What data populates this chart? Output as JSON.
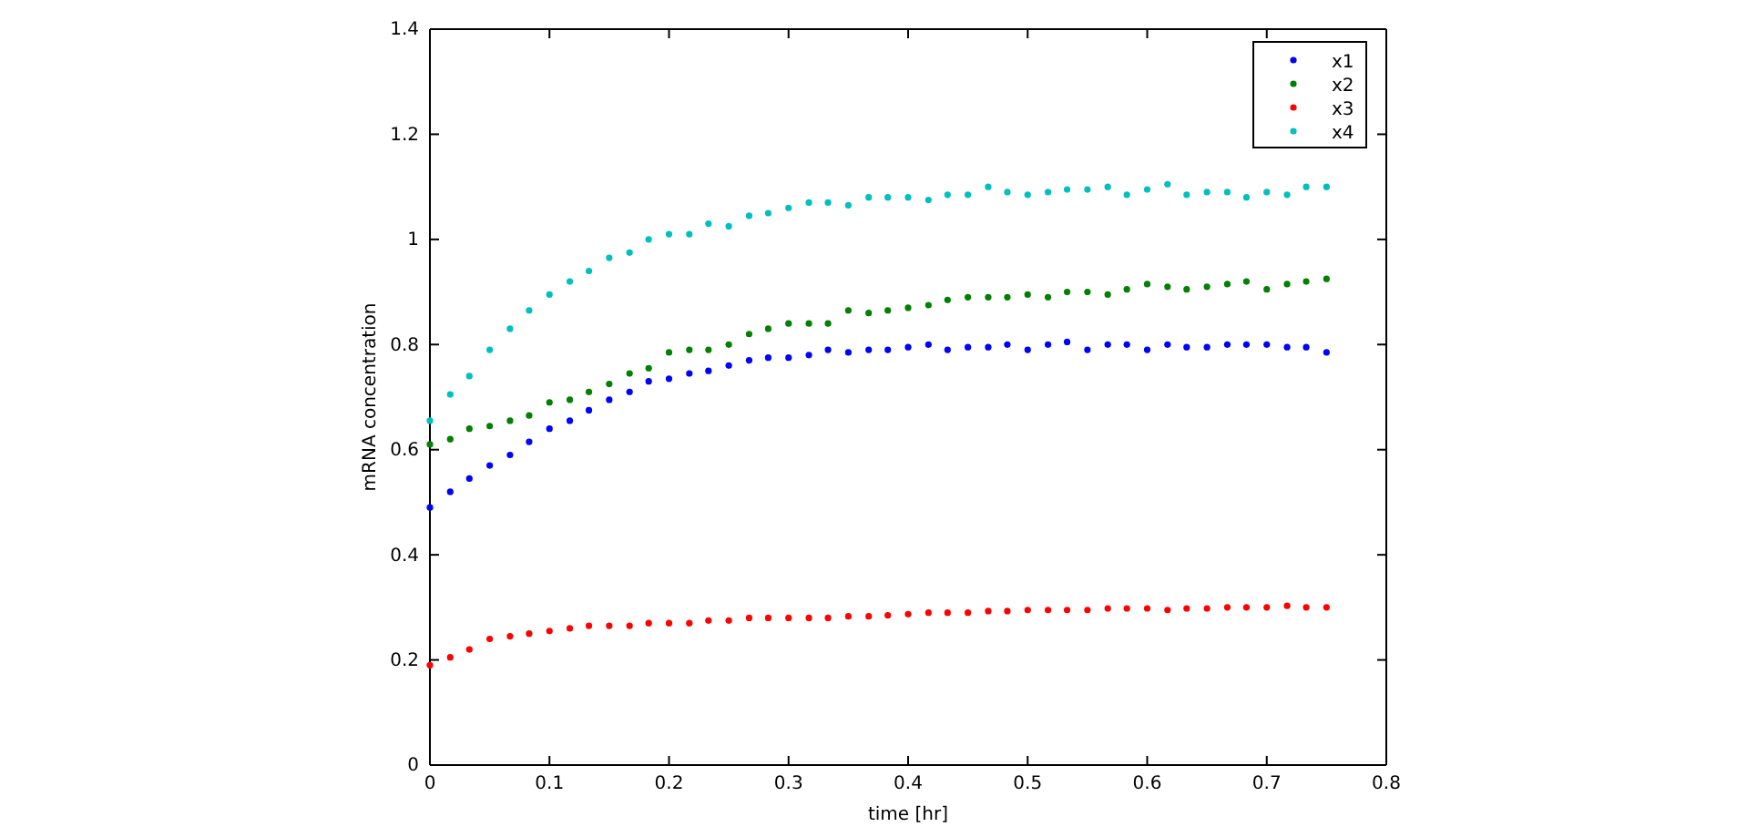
{
  "chart_data": {
    "type": "scatter",
    "xlabel": "time [hr]",
    "ylabel": "mRNA concentration",
    "x": [
      0,
      0.017,
      0.033,
      0.05,
      0.067,
      0.083,
      0.1,
      0.117,
      0.133,
      0.15,
      0.167,
      0.183,
      0.2,
      0.217,
      0.233,
      0.25,
      0.267,
      0.283,
      0.3,
      0.317,
      0.333,
      0.35,
      0.367,
      0.383,
      0.4,
      0.417,
      0.433,
      0.45,
      0.467,
      0.483,
      0.5,
      0.517,
      0.533,
      0.55,
      0.567,
      0.583,
      0.6,
      0.617,
      0.633,
      0.65,
      0.667,
      0.683,
      0.7,
      0.717,
      0.733,
      0.75
    ],
    "series": [
      {
        "name": "x1",
        "color": "#0000ff",
        "values": [
          0.49,
          0.52,
          0.545,
          0.57,
          0.59,
          0.615,
          0.64,
          0.655,
          0.675,
          0.695,
          0.71,
          0.73,
          0.735,
          0.745,
          0.75,
          0.76,
          0.77,
          0.775,
          0.775,
          0.78,
          0.79,
          0.785,
          0.79,
          0.79,
          0.795,
          0.8,
          0.79,
          0.795,
          0.795,
          0.8,
          0.79,
          0.8,
          0.805,
          0.79,
          0.8,
          0.8,
          0.79,
          0.8,
          0.795,
          0.795,
          0.8,
          0.8,
          0.8,
          0.795,
          0.795,
          0.785
        ]
      },
      {
        "name": "x2",
        "color": "#008000",
        "values": [
          0.61,
          0.62,
          0.64,
          0.645,
          0.655,
          0.665,
          0.69,
          0.695,
          0.71,
          0.725,
          0.745,
          0.755,
          0.785,
          0.79,
          0.79,
          0.8,
          0.82,
          0.83,
          0.84,
          0.84,
          0.84,
          0.865,
          0.86,
          0.865,
          0.87,
          0.875,
          0.885,
          0.89,
          0.89,
          0.89,
          0.895,
          0.89,
          0.9,
          0.9,
          0.895,
          0.905,
          0.915,
          0.91,
          0.905,
          0.91,
          0.915,
          0.92,
          0.905,
          0.915,
          0.92,
          0.925
        ]
      },
      {
        "name": "x3",
        "color": "#ff0000",
        "values": [
          0.19,
          0.205,
          0.22,
          0.24,
          0.245,
          0.25,
          0.255,
          0.26,
          0.265,
          0.265,
          0.265,
          0.27,
          0.27,
          0.27,
          0.275,
          0.275,
          0.28,
          0.28,
          0.28,
          0.28,
          0.28,
          0.283,
          0.283,
          0.285,
          0.287,
          0.29,
          0.29,
          0.29,
          0.293,
          0.293,
          0.295,
          0.295,
          0.295,
          0.295,
          0.298,
          0.298,
          0.298,
          0.295,
          0.298,
          0.298,
          0.3,
          0.3,
          0.3,
          0.303,
          0.3,
          0.3
        ]
      },
      {
        "name": "x4",
        "color": "#00bfbf",
        "values": [
          0.655,
          0.705,
          0.74,
          0.79,
          0.83,
          0.865,
          0.895,
          0.92,
          0.94,
          0.965,
          0.975,
          1.0,
          1.01,
          1.01,
          1.03,
          1.025,
          1.045,
          1.05,
          1.06,
          1.07,
          1.07,
          1.065,
          1.08,
          1.08,
          1.08,
          1.075,
          1.085,
          1.085,
          1.1,
          1.09,
          1.085,
          1.09,
          1.095,
          1.095,
          1.1,
          1.085,
          1.095,
          1.105,
          1.085,
          1.09,
          1.09,
          1.08,
          1.09,
          1.085,
          1.1,
          1.1
        ]
      }
    ],
    "xlim": [
      0,
      0.8
    ],
    "xticks": [
      0,
      0.1,
      0.2,
      0.3,
      0.4,
      0.5,
      0.6,
      0.7,
      0.8
    ],
    "ylim": [
      0,
      1.4
    ],
    "yticks": [
      0,
      0.2,
      0.4,
      0.6,
      0.8,
      1,
      1.2,
      1.4
    ],
    "legend": "top right",
    "marker": "circle"
  }
}
